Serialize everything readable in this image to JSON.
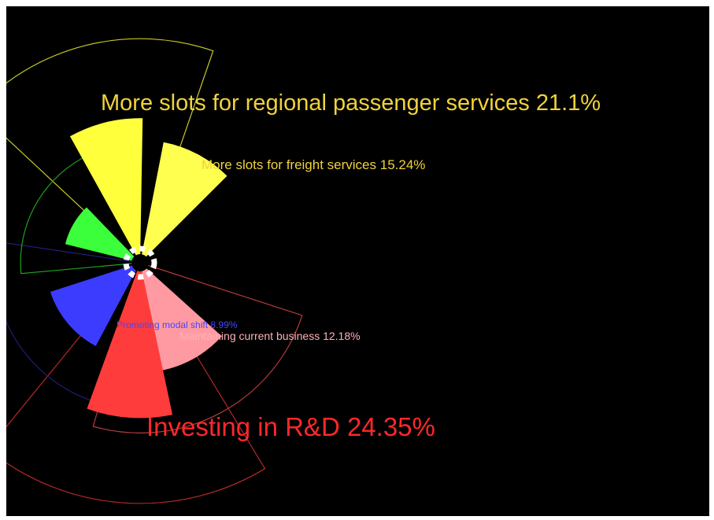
{
  "chart_data": {
    "type": "polar-area",
    "background": "#000000",
    "slices": [
      {
        "label": "More slots for regional passenger services 21.1%",
        "value": 21.1,
        "color": "#ffff3c",
        "guide_color": "#c8c826",
        "label_color": "#f0d23c"
      },
      {
        "label": "More slots for freight services 15.24%",
        "value": 15.24,
        "color": "#ffff50",
        "guide_color": "#c8c826",
        "label_color": "#f0d23c"
      },
      {
        "label": "Maintaining current business 12.18%",
        "value": 12.18,
        "color": "#ff9aa2",
        "guide_color": "#b43c3c",
        "label_color": "#ffb0b8"
      },
      {
        "label": "Investing in R&D 24.35%",
        "value": 24.35,
        "color": "#ff3c3c",
        "guide_color": "#b42828",
        "label_color": "#ff2828"
      },
      {
        "label": "Promoting modal shift 8.99%",
        "value": 8.99,
        "color": "#3c3cff",
        "guide_color": "#1e1e78",
        "label_color": "#4646ff"
      },
      {
        "label": "",
        "value": 6.0,
        "color": "#3cff3c",
        "guide_color": "#1ea01e",
        "label_color": "#3cff3c"
      }
    ]
  }
}
